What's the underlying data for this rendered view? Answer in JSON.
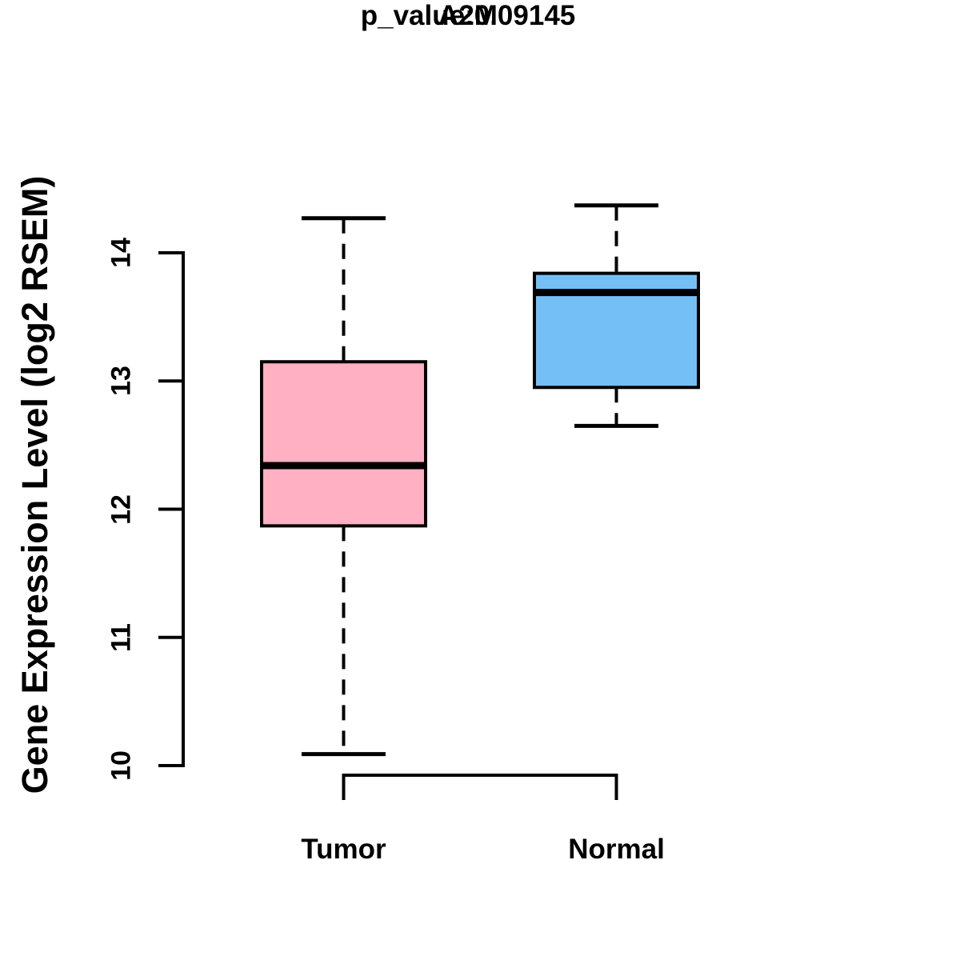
{
  "chart_data": {
    "type": "boxplot",
    "title": "A2M",
    "subtitle": "p_value:0.09145",
    "p_value": 0.09145,
    "gene": "A2M",
    "ylabel": "Gene Expression Level (log2 RSEM)",
    "xlabel": "",
    "ylim": [
      10,
      14
    ],
    "yticks": [
      "10",
      "11",
      "12",
      "13",
      "14"
    ],
    "ytick_values": [
      10,
      11,
      12,
      13,
      14
    ],
    "grid": false,
    "legend": "none",
    "axis_color": "#000000",
    "median_line_color": "#000000",
    "groups": [
      {
        "label": "Tumor",
        "fill_color": "#FFB0C2",
        "stats": {
          "whisker_low": 10.09,
          "q1": 11.87,
          "median": 12.34,
          "q3": 13.15,
          "whisker_high": 14.27
        },
        "outliers": []
      },
      {
        "label": "Normal",
        "fill_color": "#75BFF7",
        "stats": {
          "whisker_low": 12.65,
          "q1": 12.95,
          "median": 13.69,
          "q3": 13.84,
          "whisker_high": 14.37
        },
        "outliers": []
      }
    ]
  }
}
